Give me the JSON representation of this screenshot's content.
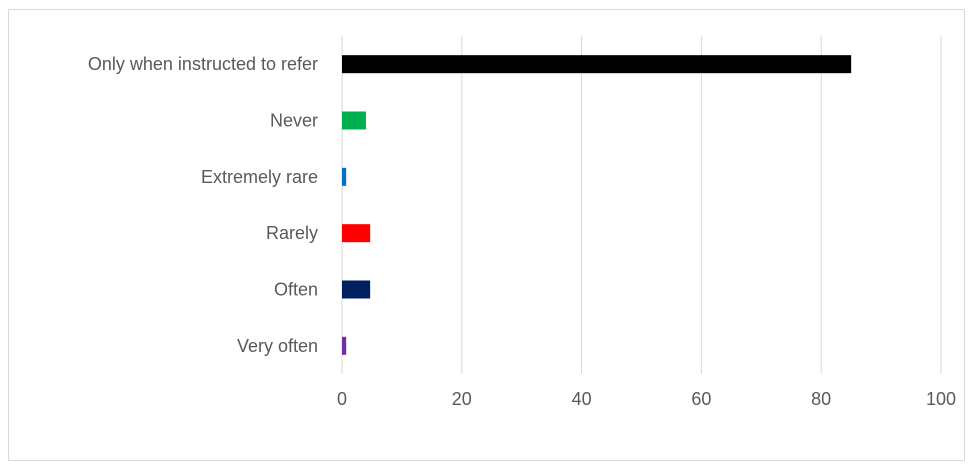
{
  "chart_data": {
    "type": "bar",
    "orientation": "horizontal",
    "categories": [
      "Only when instructed to refer",
      "Never",
      "Extremely rare",
      "Rarely",
      "Often",
      "Very often"
    ],
    "values": [
      85,
      4,
      0.7,
      4.7,
      4.7,
      0.7
    ],
    "colors": [
      "#000000",
      "#00b050",
      "#0070c0",
      "#ff0000",
      "#002060",
      "#7030a0"
    ],
    "xlim": [
      0,
      100
    ],
    "xticks": [
      0,
      20,
      40,
      60,
      80,
      100
    ],
    "grid": "vertical",
    "legend": "none",
    "title": "",
    "xlabel": "",
    "ylabel": ""
  }
}
